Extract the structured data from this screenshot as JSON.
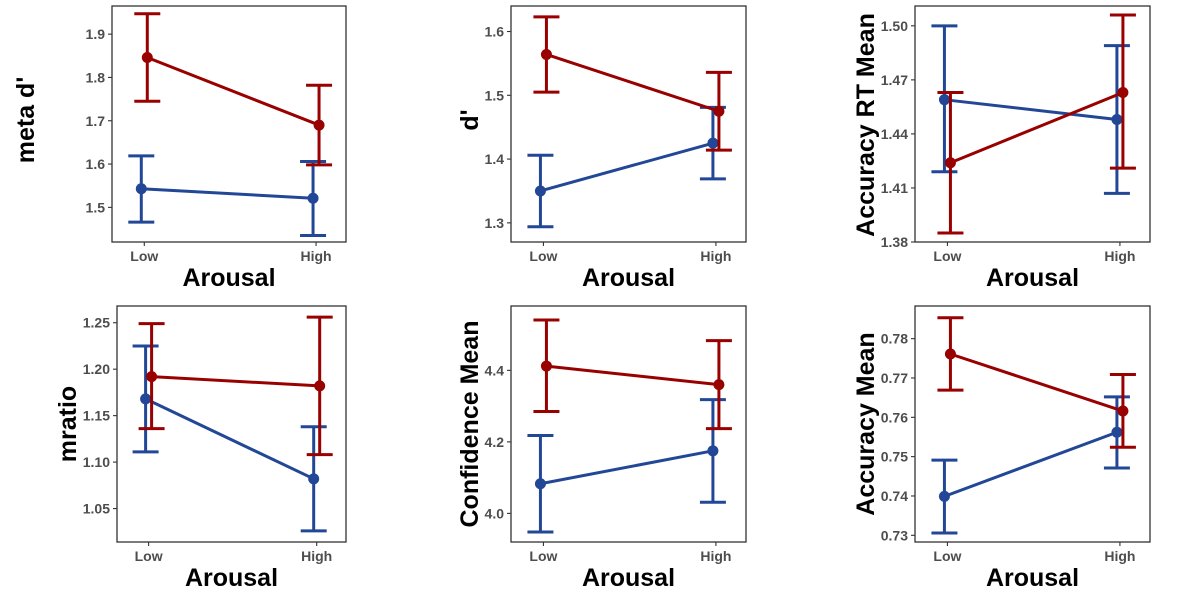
{
  "colors": {
    "series_1": "#224796",
    "series_2": "#990000"
  },
  "chart_data": [
    {
      "type": "line",
      "xlabel": "Arousal",
      "ylabel": "meta d'",
      "categories": [
        "Low",
        "High"
      ],
      "ylim": [
        1.42,
        1.965
      ],
      "yticks": [
        1.5,
        1.6,
        1.7,
        1.8,
        1.9
      ],
      "yticklabels": [
        "1.5",
        "1.6",
        "1.7",
        "1.8",
        "1.9"
      ],
      "series": [
        {
          "color": "#224796",
          "values": [
            1.543,
            1.521
          ],
          "lower": [
            1.466,
            1.435
          ],
          "upper": [
            1.619,
            1.606
          ]
        },
        {
          "color": "#990000",
          "values": [
            1.846,
            1.69
          ],
          "lower": [
            1.745,
            1.598
          ],
          "upper": [
            1.947,
            1.782
          ]
        }
      ]
    },
    {
      "type": "line",
      "xlabel": "Arousal",
      "ylabel": "d'",
      "categories": [
        "Low",
        "High"
      ],
      "ylim": [
        1.27,
        1.64
      ],
      "yticks": [
        1.3,
        1.4,
        1.5,
        1.6
      ],
      "yticklabels": [
        "1.3",
        "1.4",
        "1.5",
        "1.6"
      ],
      "series": [
        {
          "color": "#224796",
          "values": [
            1.35,
            1.425
          ],
          "lower": [
            1.294,
            1.369
          ],
          "upper": [
            1.406,
            1.481
          ]
        },
        {
          "color": "#990000",
          "values": [
            1.564,
            1.475
          ],
          "lower": [
            1.505,
            1.414
          ],
          "upper": [
            1.623,
            1.536
          ]
        }
      ]
    },
    {
      "type": "line",
      "xlabel": "Arousal",
      "ylabel": "Accuracy RT Mean",
      "categories": [
        "Low",
        "High"
      ],
      "ylim": [
        1.38,
        1.511
      ],
      "yticks": [
        1.38,
        1.41,
        1.44,
        1.47,
        1.5
      ],
      "yticklabels": [
        "1.38",
        "1.41",
        "1.44",
        "1.47",
        "1.50"
      ],
      "series": [
        {
          "color": "#224796",
          "values": [
            1.459,
            1.448
          ],
          "lower": [
            1.419,
            1.407
          ],
          "upper": [
            1.5,
            1.489
          ]
        },
        {
          "color": "#990000",
          "values": [
            1.424,
            1.463
          ],
          "lower": [
            1.385,
            1.421
          ],
          "upper": [
            1.463,
            1.506
          ]
        }
      ]
    },
    {
      "type": "line",
      "xlabel": "Arousal",
      "ylabel": "mratio",
      "categories": [
        "Low",
        "High"
      ],
      "ylim": [
        1.014,
        1.268
      ],
      "yticks": [
        1.05,
        1.1,
        1.15,
        1.2,
        1.25
      ],
      "yticklabels": [
        "1.05",
        "1.10",
        "1.15",
        "1.20",
        "1.25"
      ],
      "series": [
        {
          "color": "#224796",
          "values": [
            1.168,
            1.082
          ],
          "lower": [
            1.111,
            1.026
          ],
          "upper": [
            1.225,
            1.138
          ]
        },
        {
          "color": "#990000",
          "values": [
            1.192,
            1.182
          ],
          "lower": [
            1.136,
            1.108
          ],
          "upper": [
            1.249,
            1.256
          ]
        }
      ]
    },
    {
      "type": "line",
      "xlabel": "Arousal",
      "ylabel": "Confidence Mean",
      "categories": [
        "Low",
        "High"
      ],
      "ylim": [
        3.92,
        4.58
      ],
      "yticks": [
        4.0,
        4.2,
        4.4
      ],
      "yticklabels": [
        "4.0",
        "4.2",
        "4.4"
      ],
      "series": [
        {
          "color": "#224796",
          "values": [
            4.083,
            4.175
          ],
          "lower": [
            3.948,
            4.031
          ],
          "upper": [
            4.218,
            4.318
          ]
        },
        {
          "color": "#990000",
          "values": [
            4.412,
            4.36
          ],
          "lower": [
            4.285,
            4.237
          ],
          "upper": [
            4.541,
            4.483
          ]
        }
      ]
    },
    {
      "type": "line",
      "xlabel": "Arousal",
      "ylabel": "Accuracy Mean",
      "categories": [
        "Low",
        "High"
      ],
      "ylim": [
        0.7283,
        0.7883
      ],
      "yticks": [
        0.73,
        0.74,
        0.75,
        0.76,
        0.77,
        0.78
      ],
      "yticklabels": [
        "0.73",
        "0.74",
        "0.75",
        "0.76",
        "0.77",
        "0.78"
      ],
      "series": [
        {
          "color": "#224796",
          "values": [
            0.7399,
            0.7562
          ],
          "lower": [
            0.7306,
            0.7471
          ],
          "upper": [
            0.7491,
            0.7652
          ]
        },
        {
          "color": "#990000",
          "values": [
            0.7761,
            0.7616
          ],
          "lower": [
            0.7669,
            0.7524
          ],
          "upper": [
            0.7853,
            0.7709
          ]
        }
      ]
    }
  ]
}
